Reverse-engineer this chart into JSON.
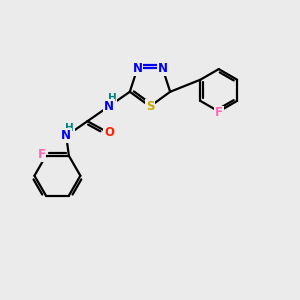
{
  "background_color": "#ebebeb",
  "atom_colors": {
    "C": "#000000",
    "N": "#0000ff",
    "O": "#ff2200",
    "S": "#ccaa00",
    "F": "#ff69b4",
    "H": "#008080"
  },
  "figsize": [
    3.0,
    3.0
  ],
  "dpi": 100,
  "lw": 1.6,
  "fontsize": 8.5
}
